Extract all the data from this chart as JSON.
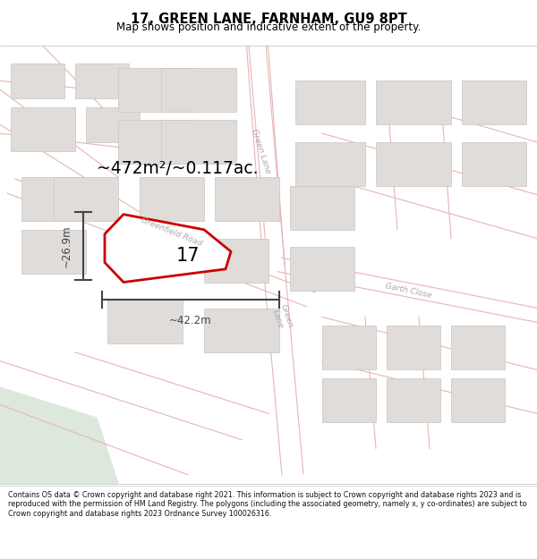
{
  "title_line1": "17, GREEN LANE, FARNHAM, GU9 8PT",
  "title_line2": "Map shows position and indicative extent of the property.",
  "footer_text": "Contains OS data © Crown copyright and database right 2021. This information is subject to Crown copyright and database rights 2023 and is reproduced with the permission of HM Land Registry. The polygons (including the associated geometry, namely x, y co-ordinates) are subject to Crown copyright and database rights 2023 Ordnance Survey 100026316.",
  "area_text": "~472m²/~0.117ac.",
  "width_label": "~42.2m",
  "height_label": "~26.9m",
  "number_label": "17",
  "map_bg": "#f7f6f5",
  "road_color": "#e8b4b4",
  "road_thin_color": "#e8b4b4",
  "building_color": "#e0dcda",
  "building_edge": "#c8c4c0",
  "property_edge": "#cc0000",
  "green_area": "#dce8dc",
  "road_label_color": "#b0a8a8",
  "dim_color": "#444444"
}
